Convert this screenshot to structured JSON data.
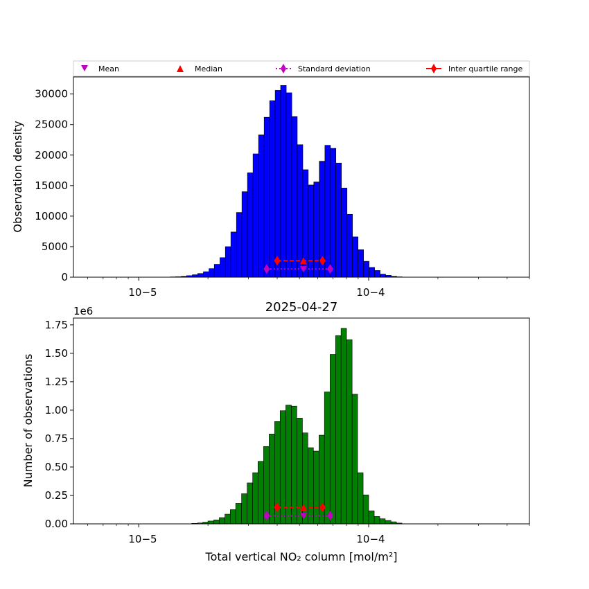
{
  "chart_data": [
    {
      "type": "histogram",
      "xscale": "log",
      "xlim": [
        5.2e-06,
        0.0005
      ],
      "ylim": [
        0,
        32800
      ],
      "ylabel": "Observation density",
      "bar_color": "#0000ff",
      "yticks": [
        0,
        5000,
        10000,
        15000,
        20000,
        25000,
        30000
      ],
      "yticklabels": [
        "0",
        "5000",
        "10000",
        "15000",
        "20000",
        "25000",
        "30000"
      ],
      "xticklabels": [
        "10−5",
        "10−4"
      ],
      "legend": [
        {
          "label": "Mean",
          "marker": "triangle-down",
          "color": "#bf00bf"
        },
        {
          "label": "Median",
          "marker": "triangle-up",
          "color": "#ff0000"
        },
        {
          "label": "Standard deviation",
          "marker": "diamond",
          "color": "#bf00bf",
          "style": "dotted"
        },
        {
          "label": "Inter quartile range",
          "marker": "diamond",
          "color": "#ff0000",
          "style": "solid"
        }
      ],
      "legend_position": "top, above plot",
      "bins": {
        "left_edges": [
          1.37e-05,
          1.445e-05,
          1.53e-05,
          1.615e-05,
          1.71e-05,
          1.805e-05,
          1.91e-05,
          2.02e-05,
          2.13e-05,
          2.255e-05,
          2.38e-05,
          2.515e-05,
          2.66e-05,
          2.81e-05,
          2.97e-05,
          3.14e-05,
          3.32e-05,
          3.51e-05,
          3.71e-05,
          3.92e-05,
          4.14e-05,
          4.38e-05,
          4.63e-05,
          4.89e-05,
          5.17e-05,
          5.46e-05,
          5.77e-05,
          6.1e-05,
          6.45e-05,
          6.82e-05,
          7.2e-05,
          7.61e-05,
          8.05e-05,
          8.5e-05,
          8.99e-05,
          9.5e-05,
          0.0001004,
          0.0001061,
          0.0001121,
          0.0001185,
          0.0001253,
          0.0001324
        ],
        "bin_ratio": 1.057,
        "values": [
          50,
          80,
          150,
          250,
          400,
          600,
          900,
          1400,
          2100,
          3200,
          5000,
          7400,
          10600,
          14000,
          17100,
          20200,
          23300,
          26200,
          28900,
          30600,
          31400,
          30200,
          26300,
          21700,
          17600,
          15100,
          15600,
          19000,
          21600,
          21100,
          18700,
          14600,
          10300,
          6600,
          4500,
          2600,
          1600,
          1100,
          500,
          300,
          150,
          60
        ]
      },
      "markers": {
        "iqr": {
          "x": [
            4e-05,
            6.3e-05
          ],
          "y": 2700
        },
        "median": {
          "x": 5.2e-05,
          "y": 2700
        },
        "std": {
          "x": [
            3.6e-05,
            6.8e-05
          ],
          "y": 1350
        },
        "mean": {
          "x": 5.2e-05,
          "y": 1350
        }
      }
    },
    {
      "type": "histogram",
      "xscale": "log",
      "xlim": [
        5.2e-06,
        0.0005
      ],
      "ylim": [
        0,
        1810000.0
      ],
      "title": "2025-04-27",
      "offset_text": "1e6",
      "xlabel": "Total vertical NO₂ column [mol/m²]",
      "ylabel": "Number of observations",
      "bar_color": "#008000",
      "yticks": [
        0,
        250000,
        500000,
        750000,
        1000000,
        1250000,
        1500000,
        1750000
      ],
      "yticklabels": [
        "0.00",
        "0.25",
        "0.50",
        "0.75",
        "1.00",
        "1.25",
        "1.50",
        "1.75"
      ],
      "xticklabels": [
        "10−5",
        "10−4"
      ],
      "bins": {
        "left_edges": [
          1.7e-05,
          1.8e-05,
          1.9e-05,
          2e-05,
          2.12e-05,
          2.24e-05,
          2.37e-05,
          2.5e-05,
          2.64e-05,
          2.8e-05,
          2.96e-05,
          3.13e-05,
          3.3e-05,
          3.49e-05,
          3.69e-05,
          3.9e-05,
          4.12e-05,
          4.36e-05,
          4.61e-05,
          4.87e-05,
          5.15e-05,
          5.44e-05,
          5.75e-05,
          6.08e-05,
          6.42e-05,
          6.79e-05,
          7.18e-05,
          7.58e-05,
          8.01e-05,
          8.47e-05,
          8.95e-05,
          9.46e-05,
          0.0001,
          0.0001057,
          0.0001117,
          0.000118,
          0.000125,
          0.000132
        ],
        "bin_ratio": 1.057,
        "values": [
          4000,
          8000,
          15000,
          25000,
          35000,
          55000,
          85000,
          125000,
          180000,
          265000,
          360000,
          450000,
          550000,
          680000,
          790000,
          900000,
          995000,
          1045000,
          1035000,
          930000,
          800000,
          670000,
          640000,
          780000,
          1160000,
          1490000,
          1655000,
          1720000,
          1620000,
          1140000,
          450000,
          255000,
          115000,
          65000,
          45000,
          30000,
          18000,
          7000
        ]
      },
      "markers": {
        "iqr": {
          "x": [
            4e-05,
            6.3e-05
          ],
          "y": 145000
        },
        "median": {
          "x": 5.2e-05,
          "y": 145000
        },
        "std": {
          "x": [
            3.6e-05,
            6.8e-05
          ],
          "y": 72000
        },
        "mean": {
          "x": 5.2e-05,
          "y": 72000
        }
      }
    }
  ]
}
